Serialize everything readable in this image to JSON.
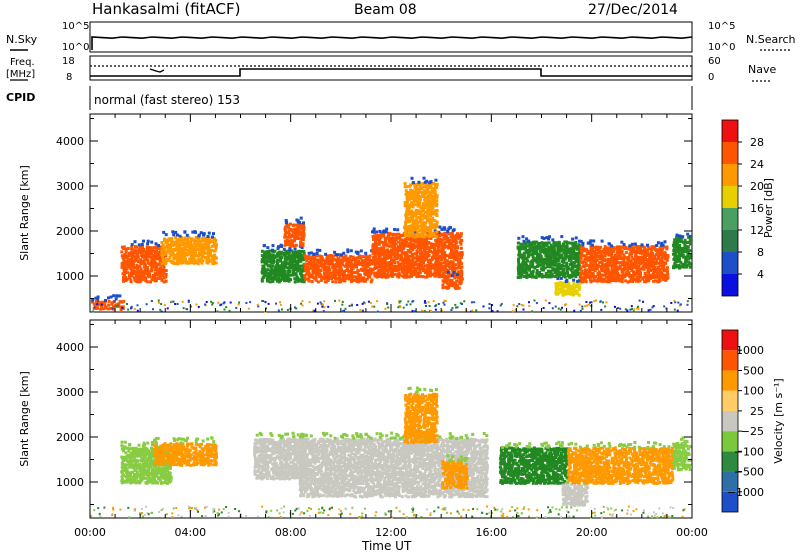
{
  "header": {
    "station": "Hankasalmi (fitACF)",
    "beam": "Beam 08",
    "date": "27/Dec/2014"
  },
  "panels": {
    "nsky": {
      "label": "N.Sky",
      "right_label": "N.Search",
      "ytick_top": "10^5",
      "ytick_bottom": "10^0"
    },
    "freq": {
      "label_top": "Freq.",
      "label_unit": "[MHz]",
      "ytick_top": "18",
      "ytick_bottom": "8",
      "right_label": "Nave",
      "right_tick_top": "60",
      "right_tick_bottom": "0"
    },
    "cpid": {
      "label": "CPID",
      "text": "normal (fast stereo) 153"
    }
  },
  "colors": {
    "red": "#ee1111",
    "orange_red": "#ff5500",
    "orange": "#ff9900",
    "yellow": "#e8d000",
    "light_green": "#88cc44",
    "green": "#228822",
    "grey": "#c8c8c0",
    "blue": "#1c4fc8",
    "dark_blue": "#0a10e0"
  },
  "chart_data": [
    {
      "type": "heatmap",
      "name": "power",
      "ylabel": "Slant Range [km]",
      "xlabel": "Time UT",
      "x_ticks": [
        "00:00",
        "04:00",
        "08:00",
        "12:00",
        "16:00",
        "20:00",
        "00:00"
      ],
      "y_ticks": [
        "1000",
        "2000",
        "3000",
        "4000"
      ],
      "xlim": [
        0,
        24
      ],
      "ylim": [
        200,
        4600
      ],
      "colorbar": {
        "label": "Power [dB]",
        "ticks": [
          "4",
          "8",
          "12",
          "16",
          "20",
          "24",
          "28"
        ],
        "colors": [
          "#0a10e0",
          "#1c4fc8",
          "#2e7a4a",
          "#4aa060",
          "#e8d000",
          "#ff9900",
          "#ff5500",
          "#ee1111"
        ]
      },
      "regions": [
        {
          "t0": 0.0,
          "t1": 1.3,
          "r0": 280,
          "r1": 480,
          "level": "orange_red"
        },
        {
          "t0": 1.2,
          "t1": 3.0,
          "r0": 900,
          "r1": 1700,
          "level": "orange_red"
        },
        {
          "t0": 2.8,
          "t1": 5.0,
          "r0": 1300,
          "r1": 1900,
          "level": "orange"
        },
        {
          "t0": 6.8,
          "t1": 8.5,
          "r0": 900,
          "r1": 1600,
          "level": "green"
        },
        {
          "t0": 7.7,
          "t1": 8.5,
          "r0": 1700,
          "r1": 2200,
          "level": "orange_red"
        },
        {
          "t0": 8.5,
          "t1": 11.2,
          "r0": 900,
          "r1": 1500,
          "level": "orange_red"
        },
        {
          "t0": 11.2,
          "t1": 14.8,
          "r0": 1000,
          "r1": 2000,
          "level": "orange_red"
        },
        {
          "t0": 12.5,
          "t1": 13.8,
          "r0": 1900,
          "r1": 3100,
          "level": "orange"
        },
        {
          "t0": 14.0,
          "t1": 14.8,
          "r0": 750,
          "r1": 1000,
          "level": "orange_red"
        },
        {
          "t0": 17.0,
          "t1": 19.5,
          "r0": 1000,
          "r1": 1800,
          "level": "green"
        },
        {
          "t0": 18.5,
          "t1": 19.5,
          "r0": 600,
          "r1": 900,
          "level": "yellow"
        },
        {
          "t0": 19.5,
          "t1": 23.0,
          "r0": 900,
          "r1": 1700,
          "level": "orange_red"
        },
        {
          "t0": 23.2,
          "t1": 24.0,
          "r0": 1200,
          "r1": 1900,
          "level": "green"
        }
      ]
    },
    {
      "type": "heatmap",
      "name": "velocity",
      "ylabel": "Slant Range [km]",
      "xlabel": "Time UT",
      "x_ticks": [
        "00:00",
        "04:00",
        "08:00",
        "12:00",
        "16:00",
        "20:00",
        "00:00"
      ],
      "y_ticks": [
        "1000",
        "2000",
        "3000",
        "4000"
      ],
      "xlim": [
        0,
        24
      ],
      "ylim": [
        200,
        4600
      ],
      "colorbar": {
        "label": "Velocity [m s⁻¹]",
        "ticks": [
          "1000",
          "500",
          "100",
          "25",
          "−25",
          "−100",
          "−500",
          "−1000"
        ],
        "colors": [
          "#1c4fc8",
          "#2e6fa8",
          "#2e8a40",
          "#7cc83c",
          "#c8c8c0",
          "#ffcc66",
          "#ff9900",
          "#ff5500",
          "#ee1111"
        ]
      },
      "regions": [
        {
          "t0": 1.2,
          "t1": 3.2,
          "r0": 1000,
          "r1": 1800,
          "level": "light_green"
        },
        {
          "t0": 2.5,
          "t1": 5.0,
          "r0": 1400,
          "r1": 1900,
          "level": "orange"
        },
        {
          "t0": 6.5,
          "t1": 8.5,
          "r0": 1100,
          "r1": 2000,
          "level": "grey"
        },
        {
          "t0": 8.3,
          "t1": 15.8,
          "r0": 700,
          "r1": 2000,
          "level": "grey"
        },
        {
          "t0": 12.5,
          "t1": 13.8,
          "r0": 1900,
          "r1": 3000,
          "level": "orange"
        },
        {
          "t0": 14.0,
          "t1": 15.0,
          "r0": 900,
          "r1": 1500,
          "level": "orange"
        },
        {
          "t0": 16.3,
          "t1": 19.0,
          "r0": 1000,
          "r1": 1800,
          "level": "green"
        },
        {
          "t0": 18.8,
          "t1": 19.8,
          "r0": 500,
          "r1": 1000,
          "level": "grey"
        },
        {
          "t0": 19.0,
          "t1": 23.2,
          "r0": 1000,
          "r1": 1800,
          "level": "orange"
        },
        {
          "t0": 23.2,
          "t1": 24.0,
          "r0": 1300,
          "r1": 1900,
          "level": "light_green"
        }
      ]
    }
  ]
}
